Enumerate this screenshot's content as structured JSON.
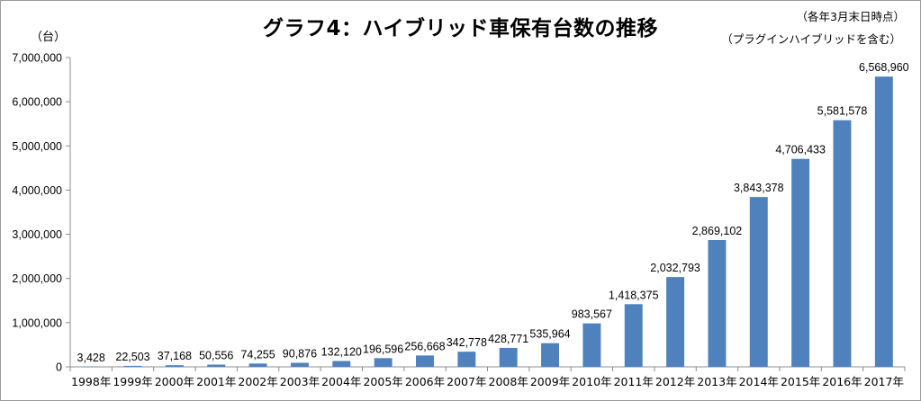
{
  "chart_data": {
    "type": "bar",
    "title": "グラフ4：ハイブリッド車保有台数の推移",
    "note_date": "（各年3月末日時点）",
    "note_scope": "（プラグインハイブリッドを含む）",
    "ylabel": "（台）",
    "xlabel": "",
    "ylim": [
      0,
      7000000
    ],
    "yticks": [
      "0",
      "1,000,000",
      "2,000,000",
      "3,000,000",
      "4,000,000",
      "5,000,000",
      "6,000,000",
      "7,000,000"
    ],
    "ytick_values": [
      0,
      1000000,
      2000000,
      3000000,
      4000000,
      5000000,
      6000000,
      7000000
    ],
    "categories": [
      "1998年",
      "1999年",
      "2000年",
      "2001年",
      "2002年",
      "2003年",
      "2004年",
      "2005年",
      "2006年",
      "2007年",
      "2008年",
      "2009年",
      "2010年",
      "2011年",
      "2012年",
      "2013年",
      "2014年",
      "2015年",
      "2016年",
      "2017年"
    ],
    "values": [
      3428,
      22503,
      37168,
      50556,
      74255,
      90876,
      132120,
      196596,
      256668,
      342778,
      428771,
      535964,
      983567,
      1418375,
      2032793,
      2869102,
      3843378,
      4706433,
      5581578,
      6568960
    ],
    "value_labels": [
      "3,428",
      "22,503",
      "37,168",
      "50,556",
      "74,255",
      "90,876",
      "132,120",
      "196,596",
      "256,668",
      "342,778",
      "428,771",
      "535,964",
      "983,567",
      "1,418,375",
      "2,032,793",
      "2,869,102",
      "3,843,378",
      "4,706,433",
      "5,581,578",
      "6,568,960"
    ],
    "grid": false,
    "legend": "none",
    "bar_color": "#4f81bd"
  }
}
